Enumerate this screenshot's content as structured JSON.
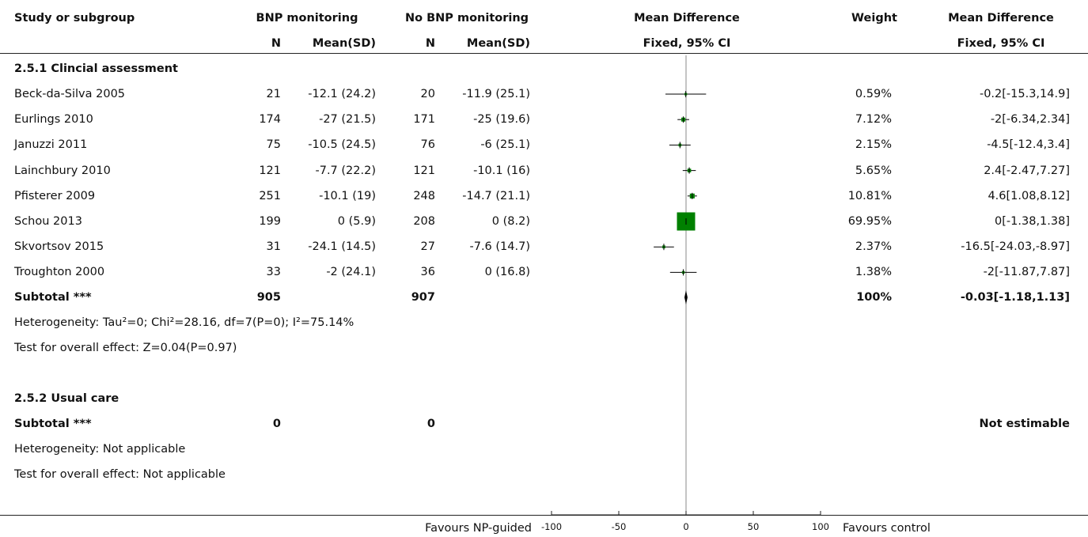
{
  "header": {
    "study": "Study or subgroup",
    "group1": "BNP monitoring",
    "group2": "No BNP monitoring",
    "n": "N",
    "mean_sd": "Mean(SD)",
    "md": "Mean Difference",
    "md_fixed": "Fixed, 95% CI",
    "weight": "Weight",
    "md2": "Mean Difference",
    "md2_fixed": "Fixed, 95% CI"
  },
  "subgroup1": {
    "title": "2.5.1 Clincial assessment",
    "subtotal": {
      "label": "Subtotal ***",
      "n1": "905",
      "n2": "907",
      "weight": "100%",
      "ci": "-0.03[-1.18,1.13]"
    },
    "heterogeneity": "Heterogeneity: Tau²=0; Chi²=28.16, df=7(P=0); I²=75.14%",
    "overall": "Test for overall effect: Z=0.04(P=0.97)"
  },
  "subgroup2": {
    "title": "2.5.2 Usual care",
    "subtotal": {
      "label": "Subtotal ***",
      "n1": "0",
      "n2": "0",
      "ci": "Not estimable"
    },
    "heterogeneity": "Heterogeneity: Not applicable",
    "overall": "Test for overall effect: Not applicable"
  },
  "axis": {
    "left_label": "Favours NP-guided",
    "right_label": "Favours control"
  },
  "colors": {
    "box": "#008000",
    "line": "#000000"
  },
  "chart_data": {
    "type": "forest",
    "xlim": [
      -100,
      100
    ],
    "ticks": [
      -100,
      -50,
      0,
      50,
      100
    ],
    "tick_labels": [
      "-100",
      "-50",
      "0",
      "50",
      "100"
    ],
    "studies": [
      {
        "name": "Beck-da-Silva 2005",
        "n1": "21",
        "m1": "-12.1 (24.2)",
        "n2": "20",
        "m2": "-11.9 (25.1)",
        "weight_label": "0.59%",
        "ci_label": "-0.2[-15.3,14.9]",
        "md": -0.2,
        "lo": -15.3,
        "hi": 14.9,
        "weight": 0.59
      },
      {
        "name": "Eurlings 2010",
        "n1": "174",
        "m1": "-27 (21.5)",
        "n2": "171",
        "m2": "-25 (19.6)",
        "weight_label": "7.12%",
        "ci_label": "-2[-6.34,2.34]",
        "md": -2,
        "lo": -6.34,
        "hi": 2.34,
        "weight": 7.12
      },
      {
        "name": "Januzzi 2011",
        "n1": "75",
        "m1": "-10.5 (24.5)",
        "n2": "76",
        "m2": "-6 (25.1)",
        "weight_label": "2.15%",
        "ci_label": "-4.5[-12.4,3.4]",
        "md": -4.5,
        "lo": -12.4,
        "hi": 3.4,
        "weight": 2.15
      },
      {
        "name": "Lainchbury 2010",
        "n1": "121",
        "m1": "-7.7 (22.2)",
        "n2": "121",
        "m2": "-10.1 (16)",
        "weight_label": "5.65%",
        "ci_label": "2.4[-2.47,7.27]",
        "md": 2.4,
        "lo": -2.47,
        "hi": 7.27,
        "weight": 5.65
      },
      {
        "name": "Pfisterer 2009",
        "n1": "251",
        "m1": "-10.1 (19)",
        "n2": "248",
        "m2": "-14.7 (21.1)",
        "weight_label": "10.81%",
        "ci_label": "4.6[1.08,8.12]",
        "md": 4.6,
        "lo": 1.08,
        "hi": 8.12,
        "weight": 10.81
      },
      {
        "name": "Schou 2013",
        "n1": "199",
        "m1": "0 (5.9)",
        "n2": "208",
        "m2": "0 (8.2)",
        "weight_label": "69.95%",
        "ci_label": "0[-1.38,1.38]",
        "md": 0,
        "lo": -1.38,
        "hi": 1.38,
        "weight": 69.95
      },
      {
        "name": "Skvortsov 2015",
        "n1": "31",
        "m1": "-24.1 (14.5)",
        "n2": "27",
        "m2": "-7.6 (14.7)",
        "weight_label": "2.37%",
        "ci_label": "-16.5[-24.03,-8.97]",
        "md": -16.5,
        "lo": -24.03,
        "hi": -8.97,
        "weight": 2.37
      },
      {
        "name": "Troughton 2000",
        "n1": "33",
        "m1": "-2 (24.1)",
        "n2": "36",
        "m2": "0 (16.8)",
        "weight_label": "1.38%",
        "ci_label": "-2[-11.87,7.87]",
        "md": -2,
        "lo": -11.87,
        "hi": 7.87,
        "weight": 1.38
      }
    ],
    "subtotal": {
      "md": -0.03,
      "lo": -1.18,
      "hi": 1.13
    }
  }
}
